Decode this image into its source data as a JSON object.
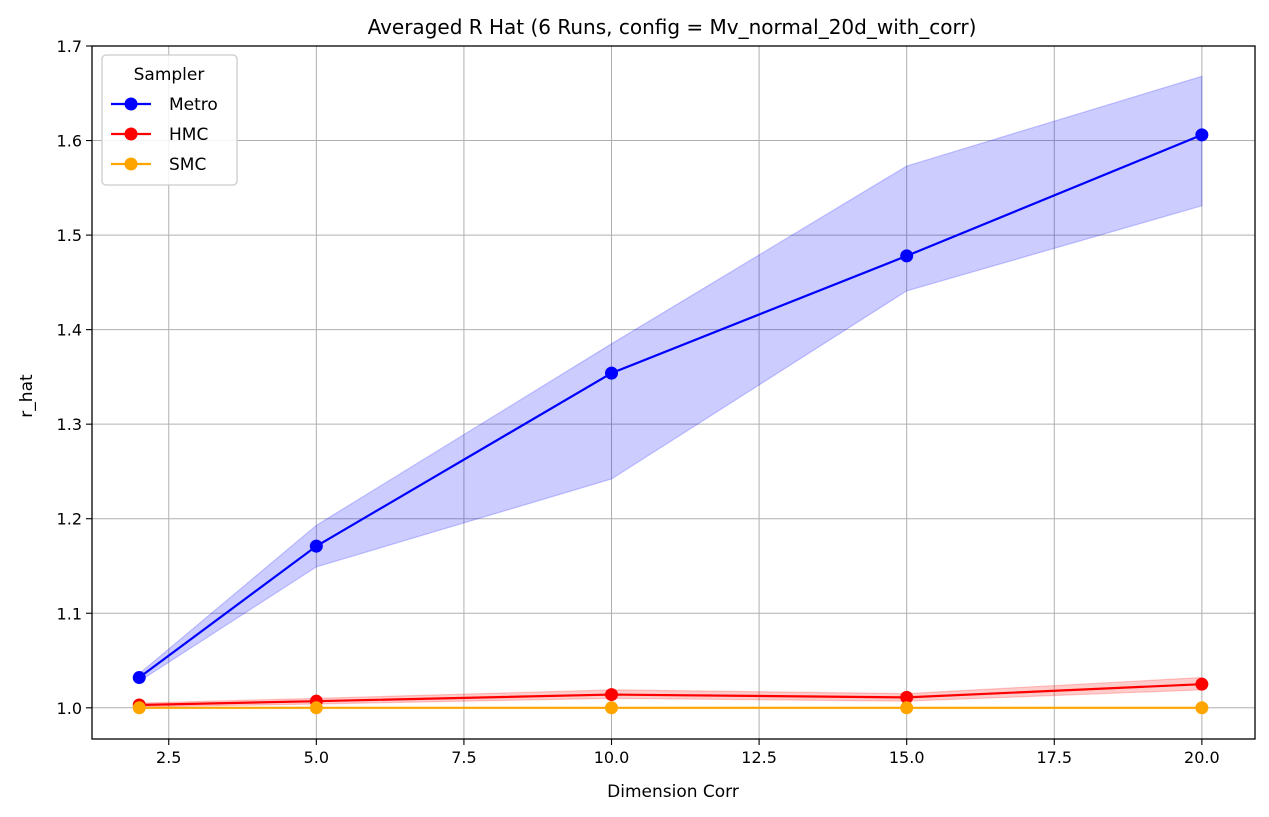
{
  "chart_data": {
    "type": "line",
    "title": "Averaged R Hat (6 Runs, config = Mv_normal_20d_with_corr)",
    "xlabel": "Dimension Corr",
    "ylabel": "r_hat",
    "xlim": [
      1.2,
      20.9
    ],
    "ylim": [
      0.967,
      1.7
    ],
    "xticks": [
      2.5,
      5.0,
      7.5,
      10.0,
      12.5,
      15.0,
      17.5,
      20.0
    ],
    "xtick_labels": [
      "2.5",
      "5.0",
      "7.5",
      "10.0",
      "12.5",
      "15.0",
      "17.5",
      "20.0"
    ],
    "yticks": [
      1.0,
      1.1,
      1.2,
      1.3,
      1.4,
      1.5,
      1.6,
      1.7
    ],
    "ytick_labels": [
      "1.0",
      "1.1",
      "1.2",
      "1.3",
      "1.4",
      "1.5",
      "1.6",
      "1.7"
    ],
    "grid": true,
    "legend": {
      "title": "Sampler",
      "placement": "top-left"
    },
    "x": [
      2,
      5,
      10,
      15,
      20
    ],
    "series": [
      {
        "name": "Metro",
        "color": "#0000ff",
        "band_color": "#0000ff",
        "values": [
          1.032,
          1.171,
          1.354,
          1.478,
          1.606
        ],
        "lower": [
          1.028,
          1.149,
          1.242,
          1.441,
          1.531
        ],
        "upper": [
          1.036,
          1.193,
          1.385,
          1.573,
          1.668
        ]
      },
      {
        "name": "HMC",
        "color": "#ff0000",
        "band_color": "#ff0000",
        "values": [
          1.003,
          1.007,
          1.014,
          1.011,
          1.025
        ],
        "lower": [
          1.001,
          1.004,
          1.01,
          1.007,
          1.019
        ],
        "upper": [
          1.005,
          1.01,
          1.019,
          1.015,
          1.032
        ]
      },
      {
        "name": "SMC",
        "color": "#ffa500",
        "band_color": "#ffa500",
        "values": [
          1.0,
          1.0,
          1.0,
          1.0,
          1.0
        ],
        "lower": [
          1.0,
          1.0,
          1.0,
          1.0,
          1.0
        ],
        "upper": [
          1.0,
          1.0,
          1.0,
          1.0,
          1.0
        ]
      }
    ]
  }
}
